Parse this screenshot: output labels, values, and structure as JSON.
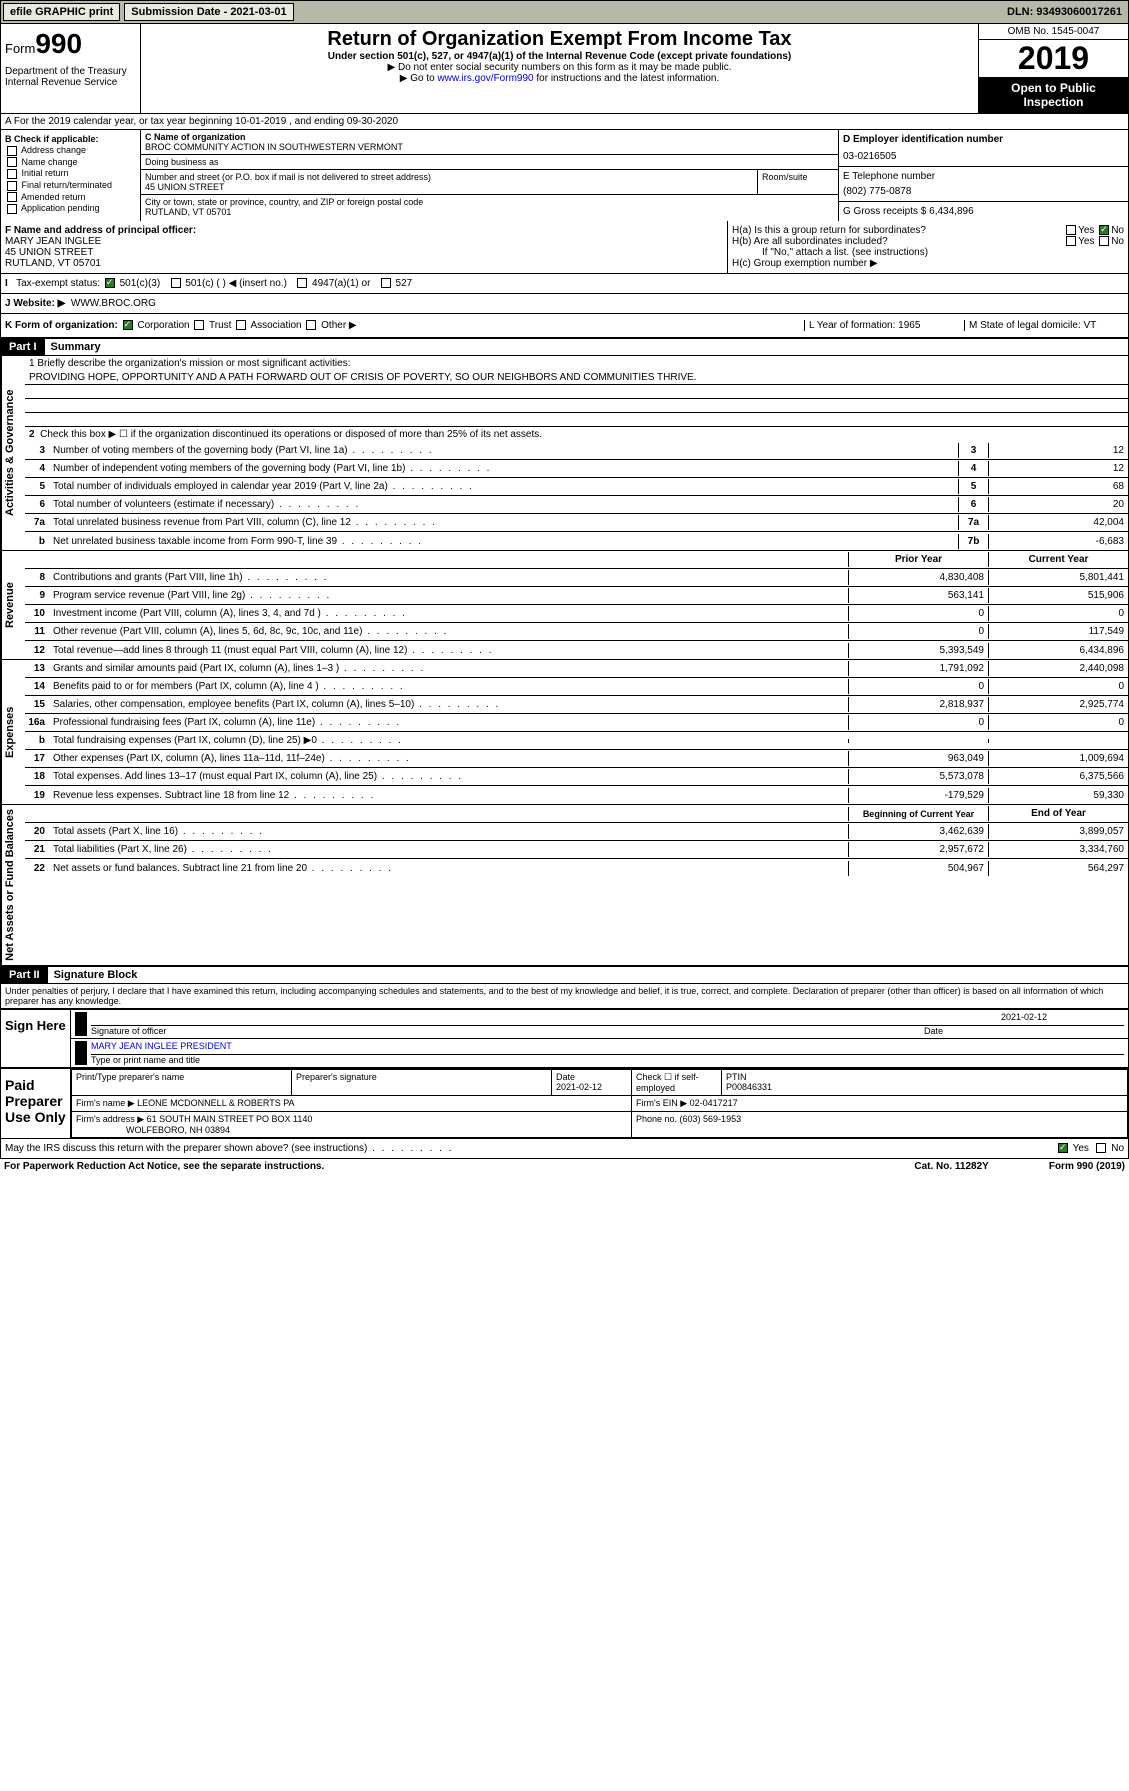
{
  "topbar": {
    "efile": "efile GRAPHIC print",
    "submission_label": "Submission Date - 2021-03-01",
    "dln": "DLN: 93493060017261"
  },
  "header": {
    "form_prefix": "Form",
    "form_number": "990",
    "dept": "Department of the Treasury\nInternal Revenue Service",
    "title": "Return of Organization Exempt From Income Tax",
    "subtitle": "Under section 501(c), 527, or 4947(a)(1) of the Internal Revenue Code (except private foundations)",
    "note1": "▶ Do not enter social security numbers on this form as it may be made public.",
    "note2_pre": "▶ Go to ",
    "note2_link": "www.irs.gov/Form990",
    "note2_post": " for instructions and the latest information.",
    "omb": "OMB No. 1545-0047",
    "year": "2019",
    "open": "Open to Public Inspection"
  },
  "row_a": "A For the 2019 calendar year, or tax year beginning 10-01-2019    , and ending 09-30-2020",
  "col_b": {
    "header": "B Check if applicable:",
    "items": [
      "Address change",
      "Name change",
      "Initial return",
      "Final return/terminated",
      "Amended return",
      "Application pending"
    ]
  },
  "col_c": {
    "name_label": "C Name of organization",
    "name": "BROC COMMUNITY ACTION IN SOUTHWESTERN VERMONT",
    "dba_label": "Doing business as",
    "addr_label": "Number and street (or P.O. box if mail is not delivered to street address)",
    "addr": "45 UNION STREET",
    "room_label": "Room/suite",
    "city_label": "City or town, state or province, country, and ZIP or foreign postal code",
    "city": "RUTLAND, VT  05701"
  },
  "col_d": {
    "d_label": "D Employer identification number",
    "d_val": "03-0216505",
    "e_label": "E Telephone number",
    "e_val": "(802) 775-0878",
    "g_label": "G Gross receipts $ 6,434,896"
  },
  "row_f": {
    "f_label": "F Name and address of principal officer:",
    "f_name": "MARY JEAN INGLEE",
    "f_addr1": "45 UNION STREET",
    "f_addr2": "RUTLAND, VT  05701"
  },
  "row_h": {
    "ha": "H(a)  Is this a group return for subordinates?",
    "hb": "H(b)  Are all subordinates included?",
    "hb_note": "If \"No,\" attach a list. (see instructions)",
    "hc": "H(c)  Group exemption number ▶"
  },
  "row_i": {
    "label": "Tax-exempt status:",
    "opt1": "501(c)(3)",
    "opt2": "501(c) (  ) ◀ (insert no.)",
    "opt3": "4947(a)(1) or",
    "opt4": "527"
  },
  "row_j": {
    "label": "J   Website: ▶",
    "val": "WWW.BROC.ORG"
  },
  "row_k": {
    "label": "K Form of organization:",
    "opts": [
      "Corporation",
      "Trust",
      "Association",
      "Other ▶"
    ],
    "l_label": "L Year of formation: 1965",
    "m_label": "M State of legal domicile: VT"
  },
  "part1": {
    "label": "Part I",
    "title": "Summary"
  },
  "side_tabs": {
    "gov": "Activities & Governance",
    "rev": "Revenue",
    "exp": "Expenses",
    "net": "Net Assets or Fund Balances"
  },
  "summary": {
    "l1_label": "1   Briefly describe the organization's mission or most significant activities:",
    "l1_text": "PROVIDING HOPE, OPPORTUNITY AND A PATH FORWARD OUT OF CRISIS OF POVERTY, SO OUR NEIGHBORS AND COMMUNITIES THRIVE.",
    "l2": "Check this box ▶ ☐  if the organization discontinued its operations or disposed of more than 25% of its net assets.",
    "rows_gov": [
      {
        "n": "3",
        "d": "Number of voting members of the governing body (Part VI, line 1a)",
        "b": "3",
        "v": "12"
      },
      {
        "n": "4",
        "d": "Number of independent voting members of the governing body (Part VI, line 1b)",
        "b": "4",
        "v": "12"
      },
      {
        "n": "5",
        "d": "Total number of individuals employed in calendar year 2019 (Part V, line 2a)",
        "b": "5",
        "v": "68"
      },
      {
        "n": "6",
        "d": "Total number of volunteers (estimate if necessary)",
        "b": "6",
        "v": "20"
      },
      {
        "n": "7a",
        "d": "Total unrelated business revenue from Part VIII, column (C), line 12",
        "b": "7a",
        "v": "42,004"
      },
      {
        "n": "b",
        "d": "Net unrelated business taxable income from Form 990-T, line 39",
        "b": "7b",
        "v": "-6,683"
      }
    ],
    "hdr_prior": "Prior Year",
    "hdr_current": "Current Year",
    "rows_rev": [
      {
        "n": "8",
        "d": "Contributions and grants (Part VIII, line 1h)",
        "p": "4,830,408",
        "c": "5,801,441"
      },
      {
        "n": "9",
        "d": "Program service revenue (Part VIII, line 2g)",
        "p": "563,141",
        "c": "515,906"
      },
      {
        "n": "10",
        "d": "Investment income (Part VIII, column (A), lines 3, 4, and 7d )",
        "p": "0",
        "c": "0"
      },
      {
        "n": "11",
        "d": "Other revenue (Part VIII, column (A), lines 5, 6d, 8c, 9c, 10c, and 11e)",
        "p": "0",
        "c": "117,549"
      },
      {
        "n": "12",
        "d": "Total revenue—add lines 8 through 11 (must equal Part VIII, column (A), line 12)",
        "p": "5,393,549",
        "c": "6,434,896"
      }
    ],
    "rows_exp": [
      {
        "n": "13",
        "d": "Grants and similar amounts paid (Part IX, column (A), lines 1–3 )",
        "p": "1,791,092",
        "c": "2,440,098"
      },
      {
        "n": "14",
        "d": "Benefits paid to or for members (Part IX, column (A), line 4 )",
        "p": "0",
        "c": "0"
      },
      {
        "n": "15",
        "d": "Salaries, other compensation, employee benefits (Part IX, column (A), lines 5–10)",
        "p": "2,818,937",
        "c": "2,925,774"
      },
      {
        "n": "16a",
        "d": "Professional fundraising fees (Part IX, column (A), line 11e)",
        "p": "0",
        "c": "0"
      },
      {
        "n": "b",
        "d": "Total fundraising expenses (Part IX, column (D), line 25) ▶0",
        "p": "",
        "c": ""
      },
      {
        "n": "17",
        "d": "Other expenses (Part IX, column (A), lines 11a–11d, 11f–24e)",
        "p": "963,049",
        "c": "1,009,694"
      },
      {
        "n": "18",
        "d": "Total expenses. Add lines 13–17 (must equal Part IX, column (A), line 25)",
        "p": "5,573,078",
        "c": "6,375,566"
      },
      {
        "n": "19",
        "d": "Revenue less expenses. Subtract line 18 from line 12",
        "p": "-179,529",
        "c": "59,330"
      }
    ],
    "hdr_begin": "Beginning of Current Year",
    "hdr_end": "End of Year",
    "rows_net": [
      {
        "n": "20",
        "d": "Total assets (Part X, line 16)",
        "p": "3,462,639",
        "c": "3,899,057"
      },
      {
        "n": "21",
        "d": "Total liabilities (Part X, line 26)",
        "p": "2,957,672",
        "c": "3,334,760"
      },
      {
        "n": "22",
        "d": "Net assets or fund balances. Subtract line 21 from line 20",
        "p": "504,967",
        "c": "564,297"
      }
    ]
  },
  "part2": {
    "label": "Part II",
    "title": "Signature Block"
  },
  "penalties": "Under penalties of perjury, I declare that I have examined this return, including accompanying schedules and statements, and to the best of my knowledge and belief, it is true, correct, and complete. Declaration of preparer (other than officer) is based on all information of which preparer has any knowledge.",
  "sign": {
    "here": "Sign Here",
    "sig_label": "Signature of officer",
    "date": "2021-02-12",
    "date_label": "Date",
    "name": "MARY JEAN INGLEE  PRESIDENT",
    "name_label": "Type or print name and title"
  },
  "paid": {
    "label": "Paid Preparer Use Only",
    "h1": "Print/Type preparer's name",
    "h2": "Preparer's signature",
    "h3": "Date",
    "h3v": "2021-02-12",
    "h4": "Check ☐ if self-employed",
    "h5": "PTIN",
    "h5v": "P00846331",
    "firm_label": "Firm's name     ▶",
    "firm": "LEONE MCDONNELL & ROBERTS PA",
    "ein_label": "Firm's EIN ▶ 02-0417217",
    "addr_label": "Firm's address ▶",
    "addr1": "61 SOUTH MAIN STREET PO BOX 1140",
    "addr2": "WOLFEBORO, NH  03894",
    "phone": "Phone no. (603) 569-1953"
  },
  "discuss": "May the IRS discuss this return with the preparer shown above? (see instructions)",
  "footer": {
    "left": "For Paperwork Reduction Act Notice, see the separate instructions.",
    "mid": "Cat. No. 11282Y",
    "right": "Form 990 (2019)"
  }
}
